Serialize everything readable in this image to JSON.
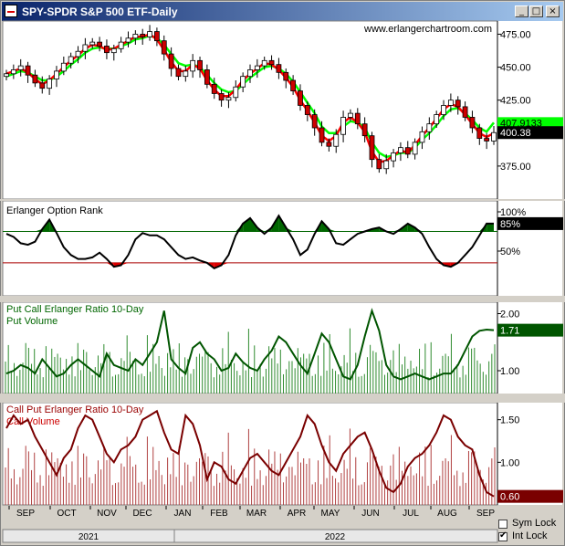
{
  "window": {
    "title": "SPY-SPDR S&P 500 ETF-Daily",
    "buttons": [
      "_",
      "□",
      "×"
    ]
  },
  "watermark": "www.erlangerchartroom.com",
  "axis": {
    "months": [
      "SEP",
      "OCT",
      "NOV",
      "DEC",
      "JAN",
      "FEB",
      "MAR",
      "APR",
      "MAY",
      "JUN",
      "JUL",
      "AUG",
      "SEP"
    ],
    "years": [
      "2021",
      "2022"
    ]
  },
  "bottom": {
    "sym_lock_label": "Sym Lock",
    "int_lock_label": "Int Lock",
    "sym_lock_checked": false,
    "int_lock_checked": true
  },
  "chart_data": [
    {
      "type": "candlestick",
      "title": "",
      "y_ticks": [
        475,
        450,
        425,
        375
      ],
      "ylim": [
        350,
        485
      ],
      "closes": [
        445,
        448,
        451,
        444,
        438,
        434,
        441,
        447,
        453,
        458,
        462,
        467,
        469,
        466,
        461,
        464,
        469,
        472,
        475,
        473,
        477,
        470,
        460,
        449,
        443,
        447,
        455,
        448,
        437,
        430,
        425,
        427,
        435,
        443,
        448,
        451,
        455,
        452,
        446,
        440,
        432,
        421,
        414,
        404,
        393,
        390,
        399,
        412,
        415,
        407,
        398,
        380,
        373,
        379,
        385,
        389,
        384,
        393,
        401,
        407,
        414,
        421,
        425,
        420,
        412,
        404,
        396,
        394,
        400.38
      ],
      "ema_fast": [
        445,
        447,
        449,
        446,
        441,
        437,
        440,
        445,
        450,
        455,
        459,
        464,
        467,
        466,
        463,
        464,
        467,
        470,
        473,
        473,
        475,
        471,
        463,
        454,
        447,
        447,
        452,
        449,
        440,
        433,
        428,
        428,
        433,
        440,
        445,
        449,
        453,
        452,
        448,
        442,
        435,
        425,
        417,
        408,
        398,
        394,
        398,
        408,
        412,
        408,
        401,
        386,
        378,
        379,
        383,
        387,
        385,
        391,
        398,
        404,
        411,
        418,
        422,
        420,
        414,
        407,
        400,
        397,
        400
      ],
      "ema_slow": [
        443,
        445,
        447,
        446,
        443,
        440,
        440,
        443,
        447,
        452,
        456,
        461,
        464,
        465,
        464,
        464,
        466,
        468,
        471,
        472,
        474,
        472,
        467,
        460,
        453,
        451,
        452,
        450,
        444,
        438,
        433,
        431,
        432,
        437,
        442,
        446,
        450,
        451,
        449,
        445,
        439,
        431,
        423,
        415,
        405,
        400,
        400,
        405,
        409,
        408,
        404,
        393,
        385,
        382,
        383,
        385,
        385,
        389,
        395,
        400,
        406,
        413,
        418,
        419,
        415,
        410,
        404,
        401,
        407.9133
      ],
      "last_value": "400.38",
      "ema_value": "407.9133",
      "colors": {
        "up": "#ffffff",
        "down": "#cc0000",
        "ema_fast": "#ff0000",
        "ema_slow": "#00ff00",
        "neutral": "#000000"
      }
    },
    {
      "type": "line",
      "title": "Erlanger Option Rank",
      "y_ticks_label": [
        "100%",
        "50%"
      ],
      "ylim": [
        0,
        100
      ],
      "upper_threshold": 75,
      "lower_threshold": 35,
      "values": [
        72,
        68,
        60,
        58,
        62,
        78,
        90,
        73,
        55,
        45,
        40,
        40,
        42,
        48,
        40,
        30,
        32,
        45,
        65,
        73,
        70,
        70,
        65,
        55,
        45,
        40,
        42,
        38,
        35,
        28,
        32,
        45,
        70,
        85,
        92,
        80,
        72,
        80,
        95,
        80,
        65,
        45,
        52,
        72,
        88,
        78,
        60,
        58,
        65,
        72,
        75,
        78,
        80,
        75,
        72,
        78,
        85,
        80,
        72,
        55,
        40,
        32,
        30,
        35,
        45,
        55,
        70,
        85,
        85
      ],
      "last_value": "85%",
      "colors": {
        "line": "#000000",
        "upper_fill": "#006600",
        "lower_fill": "#dd0000"
      }
    },
    {
      "type": "bar+line",
      "title": "Put Call Erlanger Ratio 10-Day",
      "series_bar_name": "Put Volume",
      "y_ticks": [
        2.0,
        1.0
      ],
      "ylim": [
        0.6,
        2.2
      ],
      "ratio": [
        0.95,
        1.0,
        1.1,
        1.05,
        0.95,
        1.2,
        1.05,
        0.9,
        0.95,
        1.1,
        1.2,
        1.1,
        1.0,
        0.9,
        1.3,
        1.1,
        1.05,
        1.0,
        1.2,
        1.1,
        1.3,
        1.5,
        2.05,
        1.2,
        1.05,
        0.95,
        1.4,
        1.5,
        1.3,
        1.2,
        1.0,
        1.05,
        1.3,
        1.15,
        1.05,
        1.0,
        1.2,
        1.35,
        1.6,
        1.5,
        1.3,
        1.1,
        0.95,
        1.3,
        1.65,
        1.5,
        1.2,
        0.9,
        0.85,
        1.1,
        1.6,
        2.05,
        1.7,
        1.1,
        0.9,
        0.85,
        0.9,
        0.95,
        0.9,
        0.85,
        0.9,
        0.95,
        0.95,
        1.1,
        1.35,
        1.6,
        1.7,
        1.72,
        1.71
      ],
      "volume_bar_color": "#2e8b2e",
      "line_color": "#005500",
      "last_value": "1.71"
    },
    {
      "type": "bar+line",
      "title": "Call Put Erlanger Ratio 10-Day",
      "series_bar_name": "Call Volume",
      "y_ticks": [
        1.5,
        1.0
      ],
      "ylim": [
        0.5,
        1.7
      ],
      "ratio": [
        1.4,
        1.55,
        1.45,
        1.5,
        1.3,
        1.15,
        1.0,
        0.85,
        1.05,
        1.15,
        1.4,
        1.55,
        1.5,
        1.3,
        1.1,
        1.0,
        1.15,
        1.2,
        1.3,
        1.5,
        1.55,
        1.6,
        1.35,
        1.15,
        1.1,
        1.55,
        1.45,
        1.2,
        0.8,
        1.0,
        0.95,
        0.8,
        0.75,
        0.9,
        1.05,
        1.1,
        1.0,
        0.9,
        0.85,
        1.0,
        1.15,
        1.3,
        1.55,
        1.45,
        1.2,
        1.0,
        0.9,
        1.1,
        1.2,
        1.3,
        1.35,
        1.15,
        0.9,
        0.7,
        0.65,
        0.75,
        0.95,
        1.05,
        1.1,
        1.2,
        1.35,
        1.55,
        1.5,
        1.3,
        1.2,
        1.15,
        0.85,
        0.65,
        0.6
      ],
      "volume_bar_color": "#b04040",
      "line_color": "#7a0000",
      "last_value": "0.60"
    }
  ]
}
